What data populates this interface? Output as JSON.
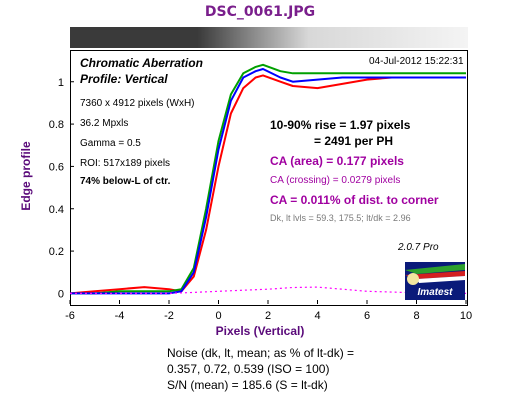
{
  "title": "DSC_0061.JPG",
  "subtitle": "Chromatic Aberration",
  "profile": "Profile: Vertical",
  "timestamp": "04-Jul-2012 15:22:31",
  "info": {
    "dims": "7360 x 4912 pixels (WxH)",
    "mpxls": "36.2 Mpxls",
    "gamma": "Gamma = 0.5",
    "roi": "ROI: 517x189 pixels",
    "location": "74% below-L of ctr."
  },
  "results": {
    "rise": "10-90% rise = 1.97 pixels",
    "per_ph": "= 2491 per PH",
    "ca_area": "CA (area) = 0.177 pixels",
    "ca_crossing": "CA (crossing) = 0.0279 pixels",
    "ca_corner": "CA = 0.011% of dist. to corner",
    "dk_levels": "Dk, lt lvls = 59.3, 175.5;  lt/dk = 2.96"
  },
  "version": "2.0.7  Pro",
  "logo_text": "Imatest",
  "noise": {
    "line1": "Noise (dk, lt, mean; as % of lt-dk) =",
    "line2": "0.357,  0.72,  0.539  (ISO =  100)",
    "line3": "S/N (mean) = 185.6  (S = lt-dk)"
  },
  "chart_data": {
    "type": "line",
    "title": "DSC_0061.JPG",
    "xlabel": "Pixels (Vertical)",
    "ylabel": "Edge profile",
    "xlim": [
      -6,
      10
    ],
    "ylim": [
      -0.05,
      1.15
    ],
    "xticks": [
      -6,
      -4,
      -2,
      0,
      2,
      4,
      6,
      8,
      10
    ],
    "yticks": [
      0,
      0.2,
      0.4,
      0.6,
      0.8,
      1
    ],
    "grid": false,
    "series": [
      {
        "color": "#ff0000",
        "x": [
          -6,
          -5,
          -4,
          -3,
          -2,
          -1.5,
          -1,
          -0.5,
          0,
          0.5,
          1,
          1.5,
          1.8,
          2.5,
          3,
          4,
          5,
          6,
          7,
          8,
          9,
          10
        ],
        "y": [
          0.0,
          0.01,
          0.02,
          0.03,
          0.02,
          0.01,
          0.08,
          0.3,
          0.6,
          0.85,
          0.97,
          1.02,
          1.03,
          1.0,
          0.98,
          0.97,
          0.99,
          1.01,
          1.02,
          1.02,
          1.02,
          1.02
        ]
      },
      {
        "color": "#00a000",
        "x": [
          -6,
          -5,
          -4,
          -3,
          -2,
          -1.5,
          -1,
          -0.5,
          0,
          0.5,
          1,
          1.5,
          1.8,
          2.5,
          3,
          4,
          5,
          6,
          7,
          8,
          9,
          10
        ],
        "y": [
          0.0,
          0.0,
          0.01,
          0.01,
          0.01,
          0.02,
          0.12,
          0.4,
          0.72,
          0.94,
          1.04,
          1.07,
          1.08,
          1.05,
          1.04,
          1.04,
          1.04,
          1.04,
          1.04,
          1.04,
          1.04,
          1.04
        ]
      },
      {
        "color": "#0000ff",
        "x": [
          -6,
          -5,
          -4,
          -3,
          -2,
          -1.5,
          -1,
          -0.5,
          0,
          0.5,
          1,
          1.5,
          1.8,
          2.5,
          3,
          4,
          5,
          6,
          7,
          8,
          9,
          10
        ],
        "y": [
          0.0,
          0.0,
          0.0,
          0.0,
          0.0,
          0.01,
          0.1,
          0.36,
          0.68,
          0.91,
          1.02,
          1.05,
          1.06,
          1.02,
          1.0,
          1.01,
          1.02,
          1.02,
          1.02,
          1.02,
          1.02,
          1.02
        ]
      },
      {
        "color": "#ff00ff",
        "dashed": true,
        "x": [
          -6,
          -4,
          -2,
          -1,
          0,
          1,
          2,
          3,
          4,
          5,
          6,
          8,
          10
        ],
        "y": [
          0.0,
          0.0,
          0.0,
          0.005,
          0.01,
          0.015,
          0.02,
          0.028,
          0.03,
          0.02,
          0.01,
          0.003,
          0.0
        ]
      }
    ]
  }
}
